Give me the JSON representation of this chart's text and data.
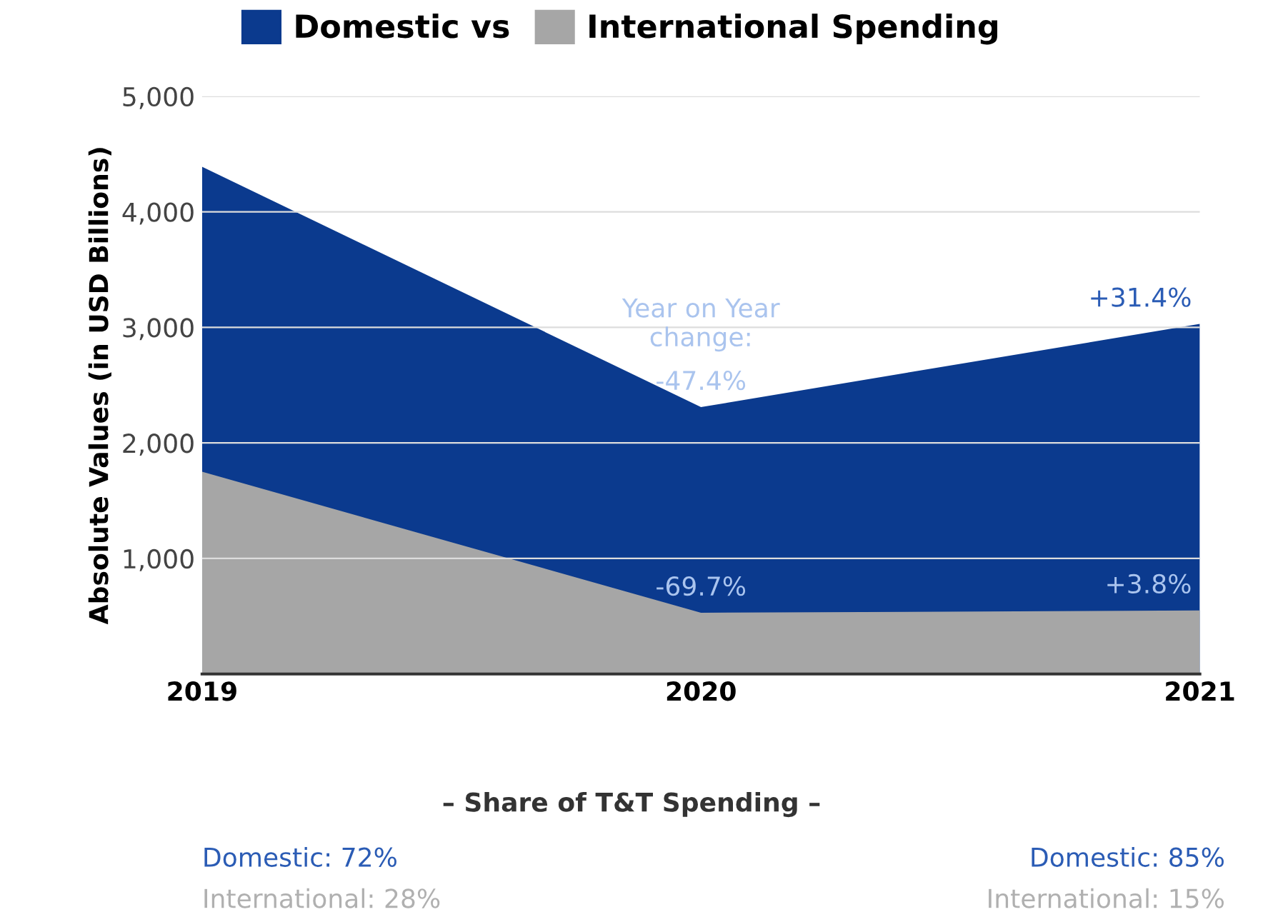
{
  "chart_data": {
    "type": "area",
    "ylabel": "Absolute Values (in USD Billions)",
    "categories": [
      "2019",
      "2020",
      "2021"
    ],
    "series": [
      {
        "name": "Domestic vs",
        "color": "#0b3a8e",
        "values": [
          4390,
          2310,
          3030
        ]
      },
      {
        "name": "International Spending",
        "color": "#a6a6a6",
        "values": [
          1750,
          530,
          550
        ]
      }
    ],
    "ylim": [
      0,
      5000
    ],
    "yticks": [
      {
        "value": 1000,
        "label": "1,000"
      },
      {
        "value": 2000,
        "label": "2,000"
      },
      {
        "value": 3000,
        "label": "3,000"
      },
      {
        "value": 4000,
        "label": "4,000"
      },
      {
        "value": 5000,
        "label": "5,000"
      }
    ],
    "grid": "y",
    "legend": "top",
    "annotations": [
      "Year on Year change:",
      {
        "text": "-47.4%",
        "x": "2020",
        "y": 2310
      },
      {
        "text": "+31.4%",
        "x": "2021",
        "y": 3030
      },
      {
        "text": "-69.7%",
        "x": "2020",
        "y": 530
      },
      {
        "text": "+3.8%",
        "x": "2021",
        "y": 550
      },
      "– Share of T&T Spending –",
      "Domestic: 72%",
      "International: 28%",
      "Domestic: 85%",
      "International: 15%"
    ]
  }
}
